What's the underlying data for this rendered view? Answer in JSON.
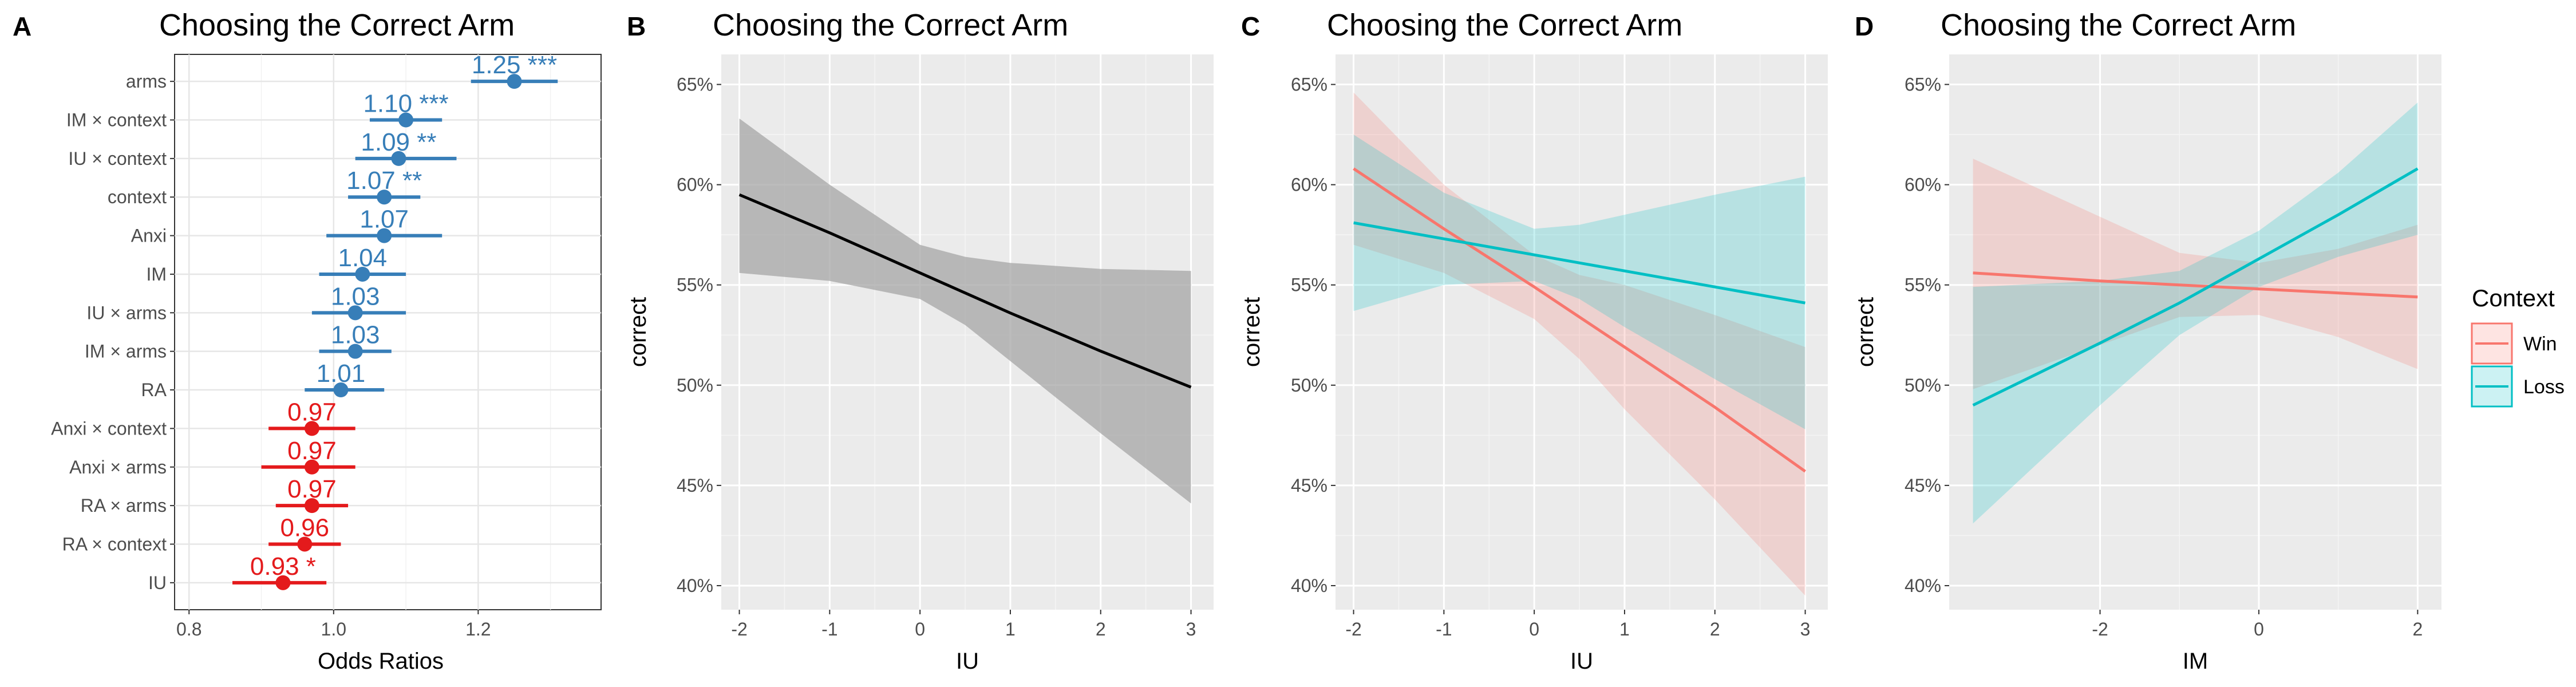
{
  "chart_data": [
    {
      "panel": "A",
      "type": "scatter",
      "title": "Choosing the Correct Arm",
      "xlabel": "Odds Ratios",
      "ylabel": "",
      "xlim": [
        0.78,
        1.37
      ],
      "xticks": [
        "0.8",
        "1.0",
        "1.2"
      ],
      "xtick_values": [
        0.8,
        1.0,
        1.2
      ],
      "colors": {
        "positive": "#377EB8",
        "negative": "#E41A1C"
      },
      "rows": [
        {
          "term": "arms",
          "estimate": 1.25,
          "low": 1.19,
          "high": 1.31,
          "label": "1.25 ***"
        },
        {
          "term": "IM × context",
          "estimate": 1.1,
          "low": 1.05,
          "high": 1.15,
          "label": "1.10 ***"
        },
        {
          "term": "IU × context",
          "estimate": 1.09,
          "low": 1.03,
          "high": 1.17,
          "label": "1.09 **"
        },
        {
          "term": "context",
          "estimate": 1.07,
          "low": 1.02,
          "high": 1.12,
          "label": "1.07 **"
        },
        {
          "term": "Anxi",
          "estimate": 1.07,
          "low": 0.99,
          "high": 1.15,
          "label": "1.07"
        },
        {
          "term": "IM",
          "estimate": 1.04,
          "low": 0.98,
          "high": 1.1,
          "label": "1.04"
        },
        {
          "term": "IU × arms",
          "estimate": 1.03,
          "low": 0.97,
          "high": 1.1,
          "label": "1.03"
        },
        {
          "term": "IM × arms",
          "estimate": 1.03,
          "low": 0.98,
          "high": 1.08,
          "label": "1.03"
        },
        {
          "term": "RA",
          "estimate": 1.01,
          "low": 0.96,
          "high": 1.07,
          "label": "1.01"
        },
        {
          "term": "Anxi × context",
          "estimate": 0.97,
          "low": 0.91,
          "high": 1.03,
          "label": "0.97"
        },
        {
          "term": "Anxi × arms",
          "estimate": 0.97,
          "low": 0.9,
          "high": 1.03,
          "label": "0.97"
        },
        {
          "term": "RA × arms",
          "estimate": 0.97,
          "low": 0.92,
          "high": 1.02,
          "label": "0.97"
        },
        {
          "term": "RA × context",
          "estimate": 0.96,
          "low": 0.91,
          "high": 1.01,
          "label": "0.96"
        },
        {
          "term": "IU",
          "estimate": 0.93,
          "low": 0.86,
          "high": 0.99,
          "label": "0.93 *"
        }
      ]
    },
    {
      "panel": "B",
      "type": "line",
      "title": "Choosing the Correct Arm",
      "xlabel": "IU",
      "ylabel": "correct",
      "xlim": [
        -2.2,
        3.25
      ],
      "ylim": [
        0.388,
        0.665
      ],
      "xticks": [
        "-2",
        "-1",
        "0",
        "1",
        "2",
        "3"
      ],
      "xtick_values": [
        -2,
        -1,
        0,
        1,
        2,
        3
      ],
      "yticks": [
        "40%",
        "45%",
        "50%",
        "55%",
        "60%",
        "65%"
      ],
      "ytick_values": [
        0.4,
        0.45,
        0.5,
        0.55,
        0.6,
        0.65
      ],
      "series": [
        {
          "name": "",
          "color": "#000000",
          "band_color": "#A6A6A6",
          "x": [
            -2,
            -1,
            0,
            0.5,
            1,
            2,
            3
          ],
          "y": [
            0.595,
            0.576,
            0.556,
            0.546,
            0.536,
            0.517,
            0.499
          ],
          "lower": [
            0.556,
            0.552,
            0.543,
            0.53,
            0.512,
            0.476,
            0.441
          ],
          "upper": [
            0.633,
            0.6,
            0.57,
            0.564,
            0.561,
            0.558,
            0.557
          ]
        }
      ]
    },
    {
      "panel": "C",
      "type": "line",
      "title": "Choosing the Correct Arm",
      "xlabel": "IU",
      "ylabel": "correct",
      "xlim": [
        -2.2,
        3.25
      ],
      "ylim": [
        0.388,
        0.665
      ],
      "xticks": [
        "-2",
        "-1",
        "0",
        "1",
        "2",
        "3"
      ],
      "xtick_values": [
        -2,
        -1,
        0,
        1,
        2,
        3
      ],
      "yticks": [
        "40%",
        "45%",
        "50%",
        "55%",
        "60%",
        "65%"
      ],
      "ytick_values": [
        0.4,
        0.45,
        0.5,
        0.55,
        0.6,
        0.65
      ],
      "series": [
        {
          "name": "Win",
          "color": "#F8766D",
          "band_color": "#F8766D",
          "x": [
            -2,
            -1,
            0,
            0.5,
            1,
            2,
            3
          ],
          "y": [
            0.608,
            0.578,
            0.549,
            0.534,
            0.519,
            0.489,
            0.457
          ],
          "lower": [
            0.57,
            0.556,
            0.533,
            0.513,
            0.488,
            0.443,
            0.395
          ],
          "upper": [
            0.646,
            0.6,
            0.565,
            0.555,
            0.55,
            0.535,
            0.519
          ]
        },
        {
          "name": "Loss",
          "color": "#00BFC4",
          "band_color": "#00BFC4",
          "x": [
            -2,
            -1,
            0,
            0.5,
            1,
            2,
            3
          ],
          "y": [
            0.581,
            0.573,
            0.565,
            0.561,
            0.557,
            0.549,
            0.541
          ],
          "lower": [
            0.537,
            0.55,
            0.552,
            0.543,
            0.529,
            0.503,
            0.478
          ],
          "upper": [
            0.625,
            0.596,
            0.578,
            0.58,
            0.585,
            0.595,
            0.604
          ]
        }
      ]
    },
    {
      "panel": "D",
      "type": "line",
      "title": "Choosing the Correct Arm",
      "xlabel": "IM",
      "ylabel": "correct",
      "xlim": [
        -3.9,
        2.3
      ],
      "ylim": [
        0.388,
        0.665
      ],
      "xticks": [
        "-2",
        "0",
        "2"
      ],
      "xtick_values": [
        -2,
        0,
        2
      ],
      "yticks": [
        "40%",
        "45%",
        "50%",
        "55%",
        "60%",
        "65%"
      ],
      "ytick_values": [
        0.4,
        0.45,
        0.5,
        0.55,
        0.6,
        0.65
      ],
      "legend": {
        "title": "Context",
        "position": "right"
      },
      "series": [
        {
          "name": "Win",
          "color": "#F8766D",
          "band_color": "#F8766D",
          "x": [
            -3.6,
            -2,
            -1,
            0,
            1,
            2
          ],
          "y": [
            0.556,
            0.552,
            0.55,
            0.548,
            0.546,
            0.544
          ],
          "lower": [
            0.498,
            0.52,
            0.534,
            0.535,
            0.524,
            0.508
          ],
          "upper": [
            0.613,
            0.584,
            0.566,
            0.561,
            0.568,
            0.58
          ]
        },
        {
          "name": "Loss",
          "color": "#00BFC4",
          "band_color": "#00BFC4",
          "x": [
            -3.6,
            -2,
            -1,
            0,
            1,
            2
          ],
          "y": [
            0.49,
            0.521,
            0.541,
            0.563,
            0.585,
            0.608
          ],
          "lower": [
            0.431,
            0.49,
            0.525,
            0.549,
            0.564,
            0.575
          ],
          "upper": [
            0.549,
            0.552,
            0.557,
            0.577,
            0.606,
            0.641
          ]
        }
      ]
    }
  ],
  "panel_letters": [
    "A",
    "B",
    "C",
    "D"
  ]
}
